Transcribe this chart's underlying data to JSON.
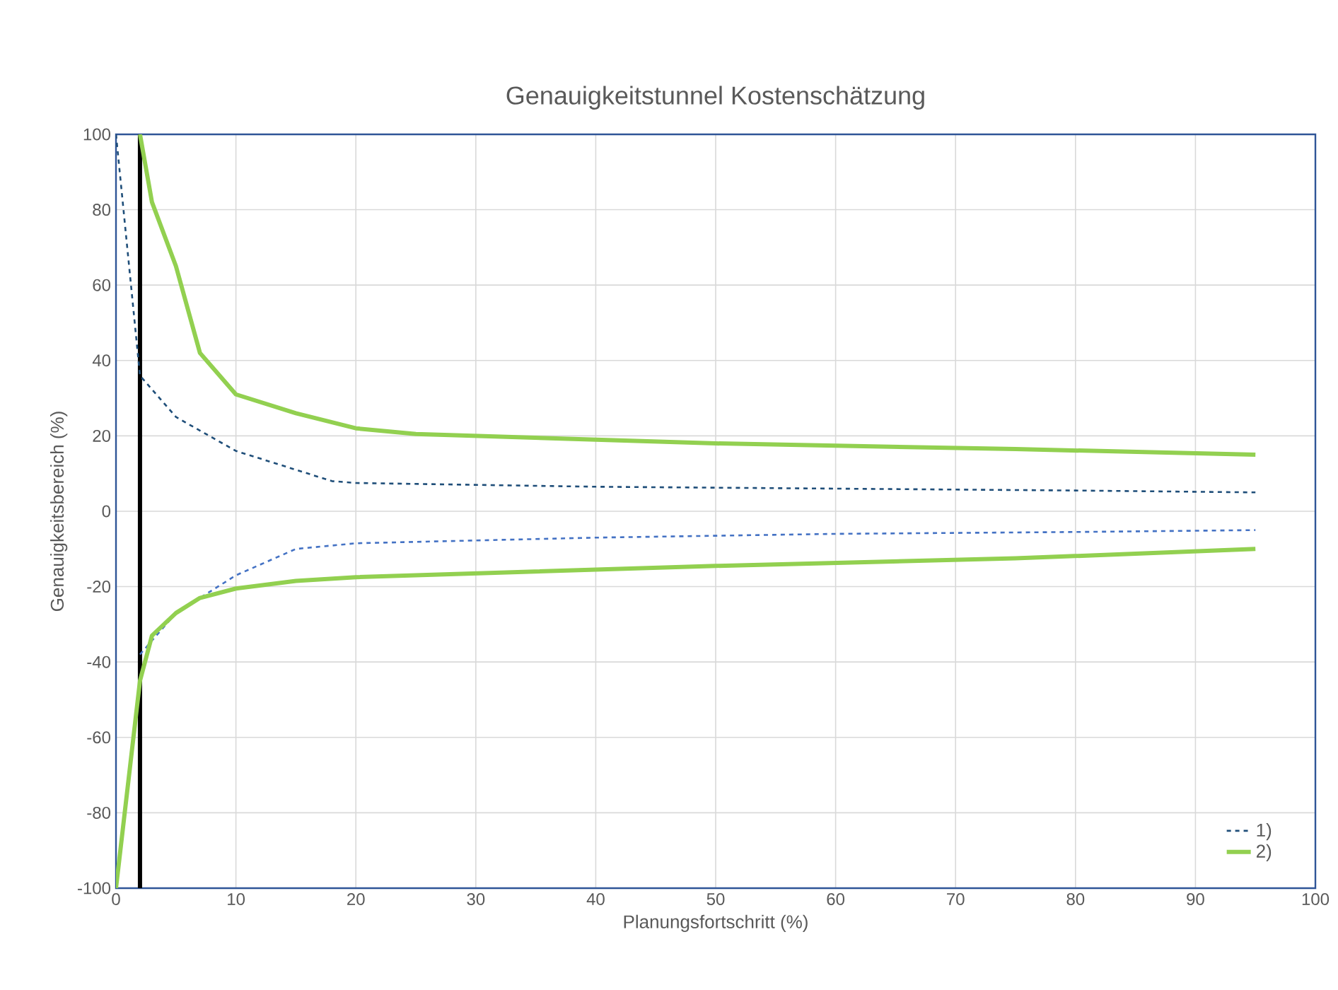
{
  "chart_data": {
    "type": "line",
    "title": "Genauigkeitstunnel Kostenschätzung",
    "xlabel": "Planungsfortschritt (%)",
    "ylabel": "Genauigkeitsbereich (%)",
    "xlim": [
      0,
      100
    ],
    "ylim": [
      -100,
      100
    ],
    "xticks": [
      0,
      10,
      20,
      30,
      40,
      50,
      60,
      70,
      80,
      90,
      100
    ],
    "yticks": [
      -100,
      -80,
      -60,
      -40,
      -20,
      0,
      20,
      40,
      60,
      80,
      100
    ],
    "grid": true,
    "legend": "bottom right",
    "series": [
      {
        "name": "1)",
        "color": "#1f4e79",
        "line_style": "dashed",
        "x": [
          0,
          2,
          5,
          10,
          15,
          18,
          20,
          40,
          60,
          80,
          95
        ],
        "values": [
          100,
          36,
          25,
          16,
          11,
          8,
          7.5,
          6.5,
          6,
          5.5,
          5
        ]
      },
      {
        "color": "#4472c4",
        "line_style": "dashed",
        "x": [
          2,
          5,
          10,
          15,
          20,
          40,
          60,
          80,
          95
        ],
        "values": [
          -38,
          -27,
          -17,
          -10,
          -8.5,
          -7,
          -6,
          -5.5,
          -5
        ]
      },
      {
        "name": "2)",
        "color": "#92d050",
        "line_style": "solid",
        "x": [
          2,
          3,
          5,
          7,
          10,
          15,
          20,
          25,
          50,
          75,
          95
        ],
        "values": [
          100,
          82,
          65,
          42,
          31,
          26,
          22,
          20.5,
          18,
          16.5,
          15
        ]
      },
      {
        "color": "#92d050",
        "line_style": "solid",
        "x": [
          0,
          2,
          3,
          5,
          7,
          10,
          15,
          20,
          50,
          75,
          95
        ],
        "values": [
          -100,
          -45,
          -33,
          -27,
          -23,
          -20.5,
          -18.5,
          -17.5,
          -14.5,
          -12.5,
          -10
        ]
      }
    ],
    "ref_lines": [
      {
        "axis": "x",
        "value": 2,
        "color": "#000000"
      }
    ]
  }
}
